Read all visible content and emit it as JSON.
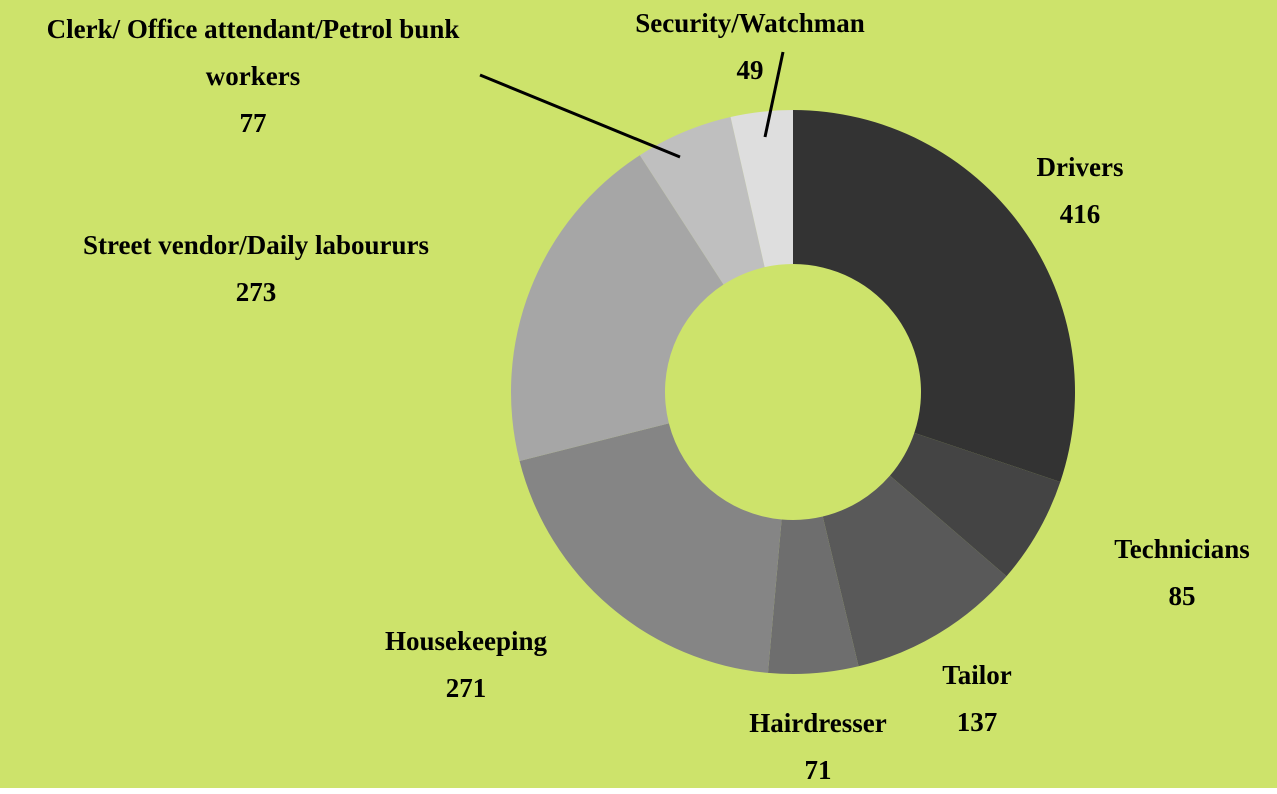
{
  "chart_data": {
    "type": "donut",
    "categories": [
      "Drivers",
      "Technicians",
      "Tailor",
      "Hairdresser",
      "Housekeeping",
      "Street vendor/Daily laboururs",
      "Clerk/ Office attendant/Petrol bunk workers",
      "Security/Watchman"
    ],
    "values": [
      416,
      85,
      137,
      71,
      271,
      273,
      77,
      49
    ],
    "colors": [
      "#333333",
      "#444444",
      "#595959",
      "#6e6e6e",
      "#858585",
      "#a6a6a6",
      "#bfbfbf",
      "#dedede"
    ],
    "background": "#cde36b"
  }
}
